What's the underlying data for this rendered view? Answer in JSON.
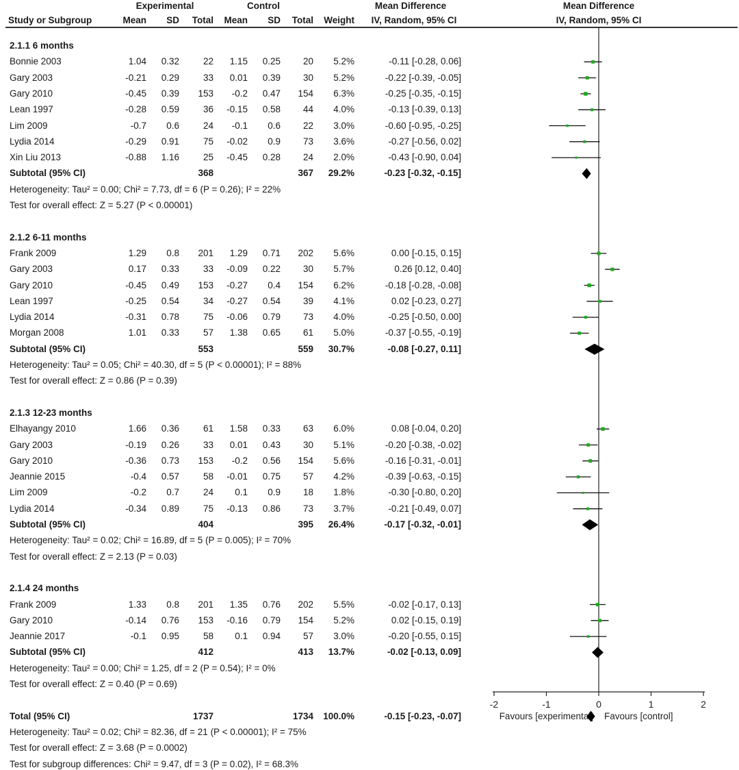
{
  "header": {
    "group1": "Experimental",
    "group2": "Control",
    "effect_left": "Mean Difference",
    "effect_left_sub": "IV, Random, 95% CI",
    "effect_right": "Mean Difference",
    "effect_right_sub": "IV, Random, 95% CI",
    "col_study": "Study or Subgroup",
    "col_mean1": "Mean",
    "col_sd1": "SD",
    "col_total1": "Total",
    "col_mean2": "Mean",
    "col_sd2": "SD",
    "col_total2": "Total",
    "col_weight": "Weight"
  },
  "rows": [
    {
      "kind": "group",
      "label": "2.1.1 6 months"
    },
    {
      "kind": "study",
      "study": "Bonnie 2003",
      "m1": "1.04",
      "sd1": "0.32",
      "n1": "22",
      "m2": "1.15",
      "sd2": "0.25",
      "n2": "20",
      "w": "5.2%",
      "ci": "-0.11 [-0.28, 0.06]"
    },
    {
      "kind": "study",
      "study": "Gary 2003",
      "m1": "-0.21",
      "sd1": "0.29",
      "n1": "33",
      "m2": "0.01",
      "sd2": "0.39",
      "n2": "30",
      "w": "5.2%",
      "ci": "-0.22 [-0.39, -0.05]"
    },
    {
      "kind": "study",
      "study": "Gary 2010",
      "m1": "-0.45",
      "sd1": "0.39",
      "n1": "153",
      "m2": "-0.2",
      "sd2": "0.47",
      "n2": "154",
      "w": "6.3%",
      "ci": "-0.25 [-0.35, -0.15]"
    },
    {
      "kind": "study",
      "study": "Lean 1997",
      "m1": "-0.28",
      "sd1": "0.59",
      "n1": "36",
      "m2": "-0.15",
      "sd2": "0.58",
      "n2": "44",
      "w": "4.0%",
      "ci": "-0.13 [-0.39, 0.13]"
    },
    {
      "kind": "study",
      "study": "Lim 2009",
      "m1": "-0.7",
      "sd1": "0.6",
      "n1": "24",
      "m2": "-0.1",
      "sd2": "0.6",
      "n2": "22",
      "w": "3.0%",
      "ci": "-0.60 [-0.95, -0.25]"
    },
    {
      "kind": "study",
      "study": "Lydia 2014",
      "m1": "-0.29",
      "sd1": "0.91",
      "n1": "75",
      "m2": "-0.02",
      "sd2": "0.9",
      "n2": "73",
      "w": "3.6%",
      "ci": "-0.27 [-0.56, 0.02]"
    },
    {
      "kind": "study",
      "study": "Xin Liu 2013",
      "m1": "-0.88",
      "sd1": "1.16",
      "n1": "25",
      "m2": "-0.45",
      "sd2": "0.28",
      "n2": "24",
      "w": "2.0%",
      "ci": "-0.43 [-0.90, 0.04]"
    },
    {
      "kind": "subtotal",
      "label": "Subtotal (95% CI)",
      "n1": "368",
      "n2": "367",
      "w": "29.2%",
      "ci": "-0.23 [-0.32, -0.15]"
    },
    {
      "kind": "note",
      "text": "Heterogeneity: Tau² = 0.00; Chi² = 7.73, df = 6 (P = 0.26); I² = 22%"
    },
    {
      "kind": "note",
      "text": "Test for overall effect: Z = 5.27 (P < 0.00001)"
    },
    {
      "kind": "blank"
    },
    {
      "kind": "group",
      "label": "2.1.2 6-11 months"
    },
    {
      "kind": "study",
      "study": "Frank 2009",
      "m1": "1.29",
      "sd1": "0.8",
      "n1": "201",
      "m2": "1.29",
      "sd2": "0.71",
      "n2": "202",
      "w": "5.6%",
      "ci": "0.00 [-0.15, 0.15]"
    },
    {
      "kind": "study",
      "study": "Gary 2003",
      "m1": "0.17",
      "sd1": "0.33",
      "n1": "33",
      "m2": "-0.09",
      "sd2": "0.22",
      "n2": "30",
      "w": "5.7%",
      "ci": "0.26 [0.12, 0.40]"
    },
    {
      "kind": "study",
      "study": "Gary 2010",
      "m1": "-0.45",
      "sd1": "0.49",
      "n1": "153",
      "m2": "-0.27",
      "sd2": "0.4",
      "n2": "154",
      "w": "6.2%",
      "ci": "-0.18 [-0.28, -0.08]"
    },
    {
      "kind": "study",
      "study": "Lean 1997",
      "m1": "-0.25",
      "sd1": "0.54",
      "n1": "34",
      "m2": "-0.27",
      "sd2": "0.54",
      "n2": "39",
      "w": "4.1%",
      "ci": "0.02 [-0.23, 0.27]"
    },
    {
      "kind": "study",
      "study": "Lydia 2014",
      "m1": "-0.31",
      "sd1": "0.78",
      "n1": "75",
      "m2": "-0.06",
      "sd2": "0.79",
      "n2": "73",
      "w": "4.0%",
      "ci": "-0.25 [-0.50, 0.00]"
    },
    {
      "kind": "study",
      "study": "Morgan 2008",
      "m1": "1.01",
      "sd1": "0.33",
      "n1": "57",
      "m2": "1.38",
      "sd2": "0.65",
      "n2": "61",
      "w": "5.0%",
      "ci": "-0.37 [-0.55, -0.19]"
    },
    {
      "kind": "subtotal",
      "label": "Subtotal (95% CI)",
      "n1": "553",
      "n2": "559",
      "w": "30.7%",
      "ci": "-0.08 [-0.27, 0.11]"
    },
    {
      "kind": "note",
      "text": "Heterogeneity: Tau² = 0.05; Chi² = 40.30, df = 5 (P < 0.00001); I² = 88%"
    },
    {
      "kind": "note",
      "text": "Test for overall effect: Z = 0.86 (P = 0.39)"
    },
    {
      "kind": "blank"
    },
    {
      "kind": "group",
      "label": "2.1.3 12-23 months"
    },
    {
      "kind": "study",
      "study": "Elhayangy 2010",
      "m1": "1.66",
      "sd1": "0.36",
      "n1": "61",
      "m2": "1.58",
      "sd2": "0.33",
      "n2": "63",
      "w": "6.0%",
      "ci": "0.08 [-0.04, 0.20]"
    },
    {
      "kind": "study",
      "study": "Gary 2003",
      "m1": "-0.19",
      "sd1": "0.26",
      "n1": "33",
      "m2": "0.01",
      "sd2": "0.43",
      "n2": "30",
      "w": "5.1%",
      "ci": "-0.20 [-0.38, -0.02]"
    },
    {
      "kind": "study",
      "study": "Gary 2010",
      "m1": "-0.36",
      "sd1": "0.73",
      "n1": "153",
      "m2": "-0.2",
      "sd2": "0.56",
      "n2": "154",
      "w": "5.6%",
      "ci": "-0.16 [-0.31, -0.01]"
    },
    {
      "kind": "study",
      "study": "Jeannie 2015",
      "m1": "-0.4",
      "sd1": "0.57",
      "n1": "58",
      "m2": "-0.01",
      "sd2": "0.75",
      "n2": "57",
      "w": "4.2%",
      "ci": "-0.39 [-0.63, -0.15]"
    },
    {
      "kind": "study",
      "study": "Lim 2009",
      "m1": "-0.2",
      "sd1": "0.7",
      "n1": "24",
      "m2": "0.1",
      "sd2": "0.9",
      "n2": "18",
      "w": "1.8%",
      "ci": "-0.30 [-0.80, 0.20]"
    },
    {
      "kind": "study",
      "study": "Lydia 2014",
      "m1": "-0.34",
      "sd1": "0.89",
      "n1": "75",
      "m2": "-0.13",
      "sd2": "0.86",
      "n2": "73",
      "w": "3.7%",
      "ci": "-0.21 [-0.49, 0.07]"
    },
    {
      "kind": "subtotal",
      "label": "Subtotal (95% CI)",
      "n1": "404",
      "n2": "395",
      "w": "26.4%",
      "ci": "-0.17 [-0.32, -0.01]"
    },
    {
      "kind": "note",
      "text": "Heterogeneity: Tau² = 0.02; Chi² = 16.89, df = 5 (P = 0.005); I² = 70%"
    },
    {
      "kind": "note",
      "text": "Test for overall effect: Z = 2.13 (P = 0.03)"
    },
    {
      "kind": "blank"
    },
    {
      "kind": "group",
      "label": "2.1.4 24 months"
    },
    {
      "kind": "study",
      "study": "Frank 2009",
      "m1": "1.33",
      "sd1": "0.8",
      "n1": "201",
      "m2": "1.35",
      "sd2": "0.76",
      "n2": "202",
      "w": "5.5%",
      "ci": "-0.02 [-0.17, 0.13]"
    },
    {
      "kind": "study",
      "study": "Gary 2010",
      "m1": "-0.14",
      "sd1": "0.76",
      "n1": "153",
      "m2": "-0.16",
      "sd2": "0.79",
      "n2": "154",
      "w": "5.2%",
      "ci": "0.02 [-0.15, 0.19]"
    },
    {
      "kind": "study",
      "study": "Jeannie 2017",
      "m1": "-0.1",
      "sd1": "0.95",
      "n1": "58",
      "m2": "0.1",
      "sd2": "0.94",
      "n2": "57",
      "w": "3.0%",
      "ci": "-0.20 [-0.55, 0.15]"
    },
    {
      "kind": "subtotal",
      "label": "Subtotal (95% CI)",
      "n1": "412",
      "n2": "413",
      "w": "13.7%",
      "ci": "-0.02 [-0.13, 0.09]"
    },
    {
      "kind": "note",
      "text": "Heterogeneity: Tau² = 0.00; Chi² = 1.25, df = 2 (P = 0.54); I² = 0%"
    },
    {
      "kind": "note",
      "text": "Test for overall effect: Z = 0.40 (P = 0.69)"
    },
    {
      "kind": "blank"
    },
    {
      "kind": "total",
      "label": "Total (95% CI)",
      "n1": "1737",
      "n2": "1734",
      "w": "100.0%",
      "ci": "-0.15 [-0.23, -0.07]"
    },
    {
      "kind": "note",
      "text": "Heterogeneity: Tau² = 0.02; Chi² = 82.36, df = 21 (P < 0.00001); I² = 75%"
    },
    {
      "kind": "note",
      "text": "Test for overall effect: Z = 3.68 (P = 0.0002)"
    },
    {
      "kind": "note",
      "text": "Test for subgroup differences: Chi² = 9.47, df = 3 (P = 0.02), I² = 68.3%"
    }
  ],
  "chart_data": {
    "type": "forest",
    "xlim": [
      -2,
      2
    ],
    "ticks": [
      -2,
      -1,
      0,
      1,
      2
    ],
    "tick_labels": [
      "-2",
      "-1",
      "0",
      "1",
      "2"
    ],
    "xlabel_left": "Favours [experimental]",
    "xlabel_right": "Favours [control]",
    "marker_color": "#22aa22",
    "diamond_color": "#000000",
    "studies": [
      {
        "row": 1,
        "est": -0.11,
        "lo": -0.28,
        "hi": 0.06,
        "weight": 5.2
      },
      {
        "row": 2,
        "est": -0.22,
        "lo": -0.39,
        "hi": -0.05,
        "weight": 5.2
      },
      {
        "row": 3,
        "est": -0.25,
        "lo": -0.35,
        "hi": -0.15,
        "weight": 6.3
      },
      {
        "row": 4,
        "est": -0.13,
        "lo": -0.39,
        "hi": 0.13,
        "weight": 4.0
      },
      {
        "row": 5,
        "est": -0.6,
        "lo": -0.95,
        "hi": -0.25,
        "weight": 3.0
      },
      {
        "row": 6,
        "est": -0.27,
        "lo": -0.56,
        "hi": 0.02,
        "weight": 3.6
      },
      {
        "row": 7,
        "est": -0.43,
        "lo": -0.9,
        "hi": 0.04,
        "weight": 2.0
      },
      {
        "row": 13,
        "est": 0.0,
        "lo": -0.15,
        "hi": 0.15,
        "weight": 5.6
      },
      {
        "row": 14,
        "est": 0.26,
        "lo": 0.12,
        "hi": 0.4,
        "weight": 5.7
      },
      {
        "row": 15,
        "est": -0.18,
        "lo": -0.28,
        "hi": -0.08,
        "weight": 6.2
      },
      {
        "row": 16,
        "est": 0.02,
        "lo": -0.23,
        "hi": 0.27,
        "weight": 4.1
      },
      {
        "row": 17,
        "est": -0.25,
        "lo": -0.5,
        "hi": 0.0,
        "weight": 4.0
      },
      {
        "row": 18,
        "est": -0.37,
        "lo": -0.55,
        "hi": -0.19,
        "weight": 5.0
      },
      {
        "row": 24,
        "est": 0.08,
        "lo": -0.04,
        "hi": 0.2,
        "weight": 6.0
      },
      {
        "row": 25,
        "est": -0.2,
        "lo": -0.38,
        "hi": -0.02,
        "weight": 5.1
      },
      {
        "row": 26,
        "est": -0.16,
        "lo": -0.31,
        "hi": -0.01,
        "weight": 5.6
      },
      {
        "row": 27,
        "est": -0.39,
        "lo": -0.63,
        "hi": -0.15,
        "weight": 4.2
      },
      {
        "row": 28,
        "est": -0.3,
        "lo": -0.8,
        "hi": 0.2,
        "weight": 1.8
      },
      {
        "row": 29,
        "est": -0.21,
        "lo": -0.49,
        "hi": 0.07,
        "weight": 3.7
      },
      {
        "row": 35,
        "est": -0.02,
        "lo": -0.17,
        "hi": 0.13,
        "weight": 5.5
      },
      {
        "row": 36,
        "est": 0.02,
        "lo": -0.15,
        "hi": 0.19,
        "weight": 5.2
      },
      {
        "row": 37,
        "est": -0.2,
        "lo": -0.55,
        "hi": 0.15,
        "weight": 3.0
      }
    ],
    "pooled": [
      {
        "row": 8,
        "est": -0.23,
        "lo": -0.32,
        "hi": -0.15
      },
      {
        "row": 19,
        "est": -0.08,
        "lo": -0.27,
        "hi": 0.11
      },
      {
        "row": 30,
        "est": -0.17,
        "lo": -0.32,
        "hi": -0.01
      },
      {
        "row": 38,
        "est": -0.02,
        "lo": -0.13,
        "hi": 0.09
      },
      {
        "row": 42,
        "est": -0.15,
        "lo": -0.23,
        "hi": -0.07
      }
    ]
  }
}
